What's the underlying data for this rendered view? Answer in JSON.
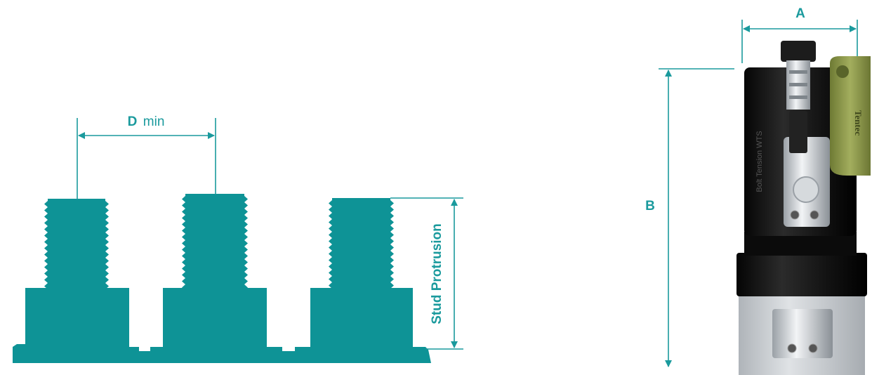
{
  "left_diagram": {
    "d_label_bold": "D",
    "d_label_rest": "min",
    "protrusion_label": "Stud Protrusion"
  },
  "right_diagram": {
    "a_label": "A",
    "b_label": "B",
    "side_text_1": "Tentec",
    "side_text_2": "Bolt Tension WTS"
  },
  "colors": {
    "teal": "#1a9a9d",
    "teal_fill": "#0e9396",
    "tool_body": "#141414",
    "handle": "#8e9a4c"
  }
}
